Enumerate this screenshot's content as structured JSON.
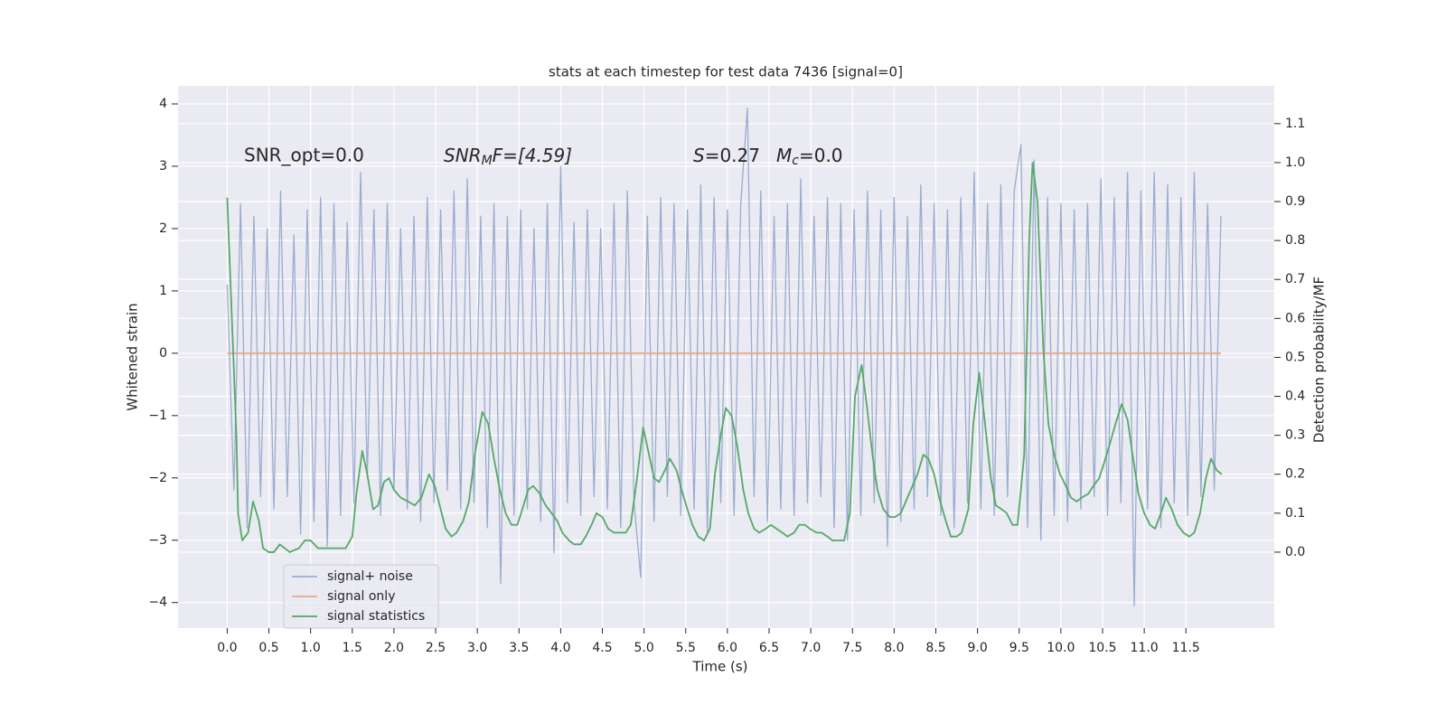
{
  "chart_data": {
    "type": "line",
    "title": "stats at each timestep for test data 7436 [signal=0]",
    "xlabel": "Time (s)",
    "ylabel": "Whitened strain",
    "y2label": "Detection probability/MF",
    "annotations": [
      {
        "text": "SNR_opt=0.0"
      },
      {
        "base": "SNR",
        "sub": "M",
        "rest": "F=[4.59]"
      },
      {
        "base": "S",
        "rest": "=0.27"
      },
      {
        "base": "M",
        "sub": "c",
        "rest": "=0.0"
      }
    ],
    "xlim": [
      -0.59,
      12.56
    ],
    "ylim": [
      -4.41,
      4.29
    ],
    "y2lim": [
      -0.195,
      1.197
    ],
    "xticks": [
      {
        "value": 0,
        "label": "0.0"
      },
      0.5,
      {
        "value": 1,
        "label": "1.0"
      },
      1.5,
      {
        "value": 2,
        "label": "2.0"
      },
      2.5,
      {
        "value": 3,
        "label": "3.0"
      },
      3.5,
      {
        "value": 4,
        "label": "4.0"
      },
      4.5,
      {
        "value": 5,
        "label": "5.0"
      },
      5.5,
      {
        "value": 6,
        "label": "6.0"
      },
      6.5,
      {
        "value": 7,
        "label": "7.0"
      },
      7.5,
      {
        "value": 8,
        "label": "8.0"
      },
      8.5,
      {
        "value": 9,
        "label": "9.0"
      },
      9.5,
      {
        "value": 10,
        "label": "10.0"
      },
      10.5,
      {
        "value": 11,
        "label": "11.0"
      },
      11.5
    ],
    "yticks": [
      {
        "value": -4,
        "label": "−4"
      },
      {
        "value": -3,
        "label": "−3"
      },
      {
        "value": -2,
        "label": "−2"
      },
      {
        "value": -1,
        "label": "−1"
      },
      0,
      1,
      2,
      3,
      4
    ],
    "y2ticks": [
      {
        "value": 0,
        "label": "0.0"
      },
      0.1,
      0.2,
      0.3,
      0.4,
      0.5,
      0.6,
      0.7,
      0.8,
      0.9,
      {
        "value": 1,
        "label": "1.0"
      },
      1.1
    ],
    "grid": true,
    "legend": "lower left",
    "series": [
      {
        "name": "signal+ noise",
        "color": "#9aaccf",
        "x": [
          0,
          0.08,
          0.16,
          0.24,
          0.32,
          0.4,
          0.48,
          0.56,
          0.64,
          0.72,
          0.8,
          0.88,
          0.96,
          1.04,
          1.12,
          1.2,
          1.28,
          1.36,
          1.44,
          1.52,
          1.6,
          1.68,
          1.76,
          1.84,
          1.92,
          2,
          2.08,
          2.16,
          2.24,
          2.32,
          2.4,
          2.48,
          2.56,
          2.64,
          2.72,
          2.8,
          2.88,
          2.96,
          3.04,
          3.12,
          3.2,
          3.28,
          3.36,
          3.44,
          3.52,
          3.6,
          3.68,
          3.76,
          3.84,
          3.92,
          4,
          4.08,
          4.16,
          4.24,
          4.32,
          4.4,
          4.48,
          4.56,
          4.64,
          4.72,
          4.8,
          4.88,
          4.96,
          5.04,
          5.12,
          5.2,
          5.28,
          5.36,
          5.44,
          5.52,
          5.6,
          5.68,
          5.76,
          5.84,
          5.92,
          6,
          6.08,
          6.16,
          6.24,
          6.32,
          6.4,
          6.48,
          6.56,
          6.64,
          6.72,
          6.8,
          6.88,
          6.96,
          7.04,
          7.12,
          7.2,
          7.28,
          7.36,
          7.44,
          7.52,
          7.6,
          7.68,
          7.76,
          7.84,
          7.92,
          8,
          8.08,
          8.16,
          8.24,
          8.32,
          8.4,
          8.48,
          8.56,
          8.64,
          8.72,
          8.8,
          8.88,
          8.96,
          9.04,
          9.12,
          9.2,
          9.28,
          9.36,
          9.44,
          9.52,
          9.6,
          9.68,
          9.76,
          9.84,
          9.92,
          10,
          10.08,
          10.16,
          10.24,
          10.32,
          10.4,
          10.48,
          10.56,
          10.64,
          10.72,
          10.8,
          10.88,
          10.96,
          11.04,
          11.12,
          11.2,
          11.28,
          11.36,
          11.44,
          11.52,
          11.6,
          11.68,
          11.76,
          11.84,
          11.92
        ],
        "values": [
          1.1,
          -2.2,
          2.4,
          -2.8,
          2.2,
          -2.3,
          2.0,
          -2.5,
          2.6,
          -2.3,
          1.9,
          -2.9,
          2.3,
          -2.7,
          2.5,
          -3.1,
          2.4,
          -2.6,
          2.1,
          -2.4,
          2.9,
          -2.0,
          2.3,
          -2.6,
          2.4,
          -2.2,
          2.0,
          -2.5,
          2.2,
          -2.7,
          2.5,
          -2.4,
          2.3,
          -2.2,
          2.6,
          -2.5,
          2.8,
          -2.4,
          2.2,
          -2.8,
          2.4,
          -3.7,
          2.2,
          -2.6,
          2.3,
          -2.5,
          2.0,
          -2.7,
          2.4,
          -3.2,
          3.0,
          -2.4,
          2.1,
          -2.6,
          2.3,
          -2.3,
          2.0,
          -2.5,
          2.4,
          -2.8,
          2.6,
          -2.4,
          -3.6,
          2.2,
          -2.7,
          2.5,
          -2.3,
          2.4,
          -2.6,
          2.3,
          -2.5,
          2.7,
          -2.9,
          2.5,
          -2.4,
          2.3,
          -2.6,
          2.4,
          3.93,
          -2.3,
          2.6,
          -2.7,
          2.2,
          -2.5,
          2.4,
          -2.6,
          2.8,
          -2.4,
          2.2,
          -2.3,
          2.5,
          -2.8,
          2.4,
          -3.0,
          2.3,
          -2.6,
          2.6,
          -2.4,
          2.3,
          -3.1,
          2.5,
          -2.7,
          2.2,
          -2.5,
          2.7,
          -2.3,
          2.4,
          -2.6,
          2.3,
          -2.8,
          2.5,
          -2.4,
          2.9,
          -2.5,
          2.4,
          -2.6,
          2.7,
          -2.3,
          2.6,
          3.35,
          -2.8,
          3.1,
          -3.0,
          2.5,
          -2.6,
          2.4,
          -2.7,
          2.3,
          -2.5,
          2.4,
          -2.3,
          2.8,
          -2.6,
          2.5,
          -2.4,
          2.9,
          -4.05,
          2.6,
          -2.5,
          2.9,
          -2.8,
          2.7,
          -2.4,
          2.5,
          -2.6,
          2.9,
          -2.3,
          2.4,
          -2.2,
          2.2
        ]
      },
      {
        "name": "signal only",
        "color": "#e8a68a",
        "x": [
          0,
          11.92
        ],
        "values": [
          0,
          0
        ]
      },
      {
        "name": "signal statistics",
        "color": "#55a868",
        "axis": "y2",
        "x": [
          0,
          0.11,
          0.13,
          0.18,
          0.25,
          0.31,
          0.38,
          0.43,
          0.5,
          0.56,
          0.63,
          0.75,
          0.86,
          0.93,
          1,
          1.09,
          1.21,
          1.34,
          1.42,
          1.5,
          1.55,
          1.62,
          1.68,
          1.75,
          1.81,
          1.88,
          1.94,
          2,
          2.08,
          2.17,
          2.25,
          2.33,
          2.42,
          2.49,
          2.56,
          2.62,
          2.69,
          2.75,
          2.83,
          2.9,
          2.97,
          3.06,
          3.13,
          3.2,
          3.27,
          3.34,
          3.41,
          3.48,
          3.54,
          3.61,
          3.67,
          3.75,
          3.82,
          3.89,
          3.96,
          4.02,
          4.1,
          4.16,
          4.24,
          4.3,
          4.37,
          4.43,
          4.5,
          4.57,
          4.64,
          4.7,
          4.78,
          4.84,
          4.91,
          4.99,
          5.05,
          5.12,
          5.18,
          5.25,
          5.31,
          5.39,
          5.45,
          5.52,
          5.58,
          5.65,
          5.72,
          5.79,
          5.85,
          5.92,
          5.98,
          6.05,
          6.12,
          6.19,
          6.25,
          6.32,
          6.38,
          6.46,
          6.52,
          6.59,
          6.66,
          6.72,
          6.8,
          6.86,
          6.93,
          6.99,
          7.07,
          7.13,
          7.2,
          7.26,
          7.34,
          7.4,
          7.47,
          7.53,
          7.61,
          7.67,
          7.74,
          7.8,
          7.87,
          7.95,
          8.01,
          8.08,
          8.14,
          8.2,
          8.28,
          8.35,
          8.41,
          8.48,
          8.54,
          8.62,
          8.68,
          8.75,
          8.81,
          8.89,
          8.95,
          9.02,
          9.08,
          9.16,
          9.22,
          9.29,
          9.35,
          9.42,
          9.48,
          9.56,
          9.62,
          9.66,
          9.72,
          9.79,
          9.85,
          9.92,
          9.99,
          10.06,
          10.12,
          10.19,
          10.25,
          10.33,
          10.39,
          10.46,
          10.52,
          10.59,
          10.67,
          10.73,
          10.8,
          10.86,
          10.93,
          11,
          11.07,
          11.13,
          11.2,
          11.26,
          11.33,
          11.4,
          11.47,
          11.54,
          11.6,
          11.67,
          11.74,
          11.8,
          11.87,
          11.93
        ],
        "values": [
          0.91,
          0.3,
          0.1,
          0.03,
          0.05,
          0.13,
          0.08,
          0.01,
          0,
          0,
          0.02,
          0,
          0.01,
          0.03,
          0.03,
          0.01,
          0.01,
          0.01,
          0.01,
          0.04,
          0.15,
          0.26,
          0.2,
          0.11,
          0.12,
          0.18,
          0.19,
          0.16,
          0.14,
          0.13,
          0.12,
          0.14,
          0.2,
          0.17,
          0.11,
          0.06,
          0.04,
          0.05,
          0.08,
          0.13,
          0.25,
          0.36,
          0.33,
          0.24,
          0.16,
          0.1,
          0.07,
          0.07,
          0.11,
          0.16,
          0.17,
          0.15,
          0.12,
          0.1,
          0.08,
          0.05,
          0.03,
          0.02,
          0.02,
          0.04,
          0.07,
          0.1,
          0.09,
          0.06,
          0.05,
          0.05,
          0.05,
          0.07,
          0.18,
          0.32,
          0.26,
          0.19,
          0.18,
          0.21,
          0.24,
          0.21,
          0.16,
          0.11,
          0.07,
          0.04,
          0.03,
          0.06,
          0.2,
          0.3,
          0.37,
          0.35,
          0.27,
          0.16,
          0.1,
          0.06,
          0.05,
          0.06,
          0.07,
          0.06,
          0.05,
          0.04,
          0.05,
          0.07,
          0.07,
          0.06,
          0.05,
          0.05,
          0.04,
          0.03,
          0.03,
          0.03,
          0.1,
          0.4,
          0.48,
          0.38,
          0.25,
          0.16,
          0.11,
          0.09,
          0.09,
          0.1,
          0.13,
          0.16,
          0.2,
          0.25,
          0.24,
          0.2,
          0.14,
          0.08,
          0.04,
          0.04,
          0.05,
          0.11,
          0.33,
          0.46,
          0.35,
          0.19,
          0.12,
          0.11,
          0.1,
          0.07,
          0.07,
          0.25,
          0.8,
          1.0,
          0.9,
          0.52,
          0.33,
          0.25,
          0.2,
          0.17,
          0.14,
          0.13,
          0.14,
          0.15,
          0.17,
          0.19,
          0.23,
          0.28,
          0.34,
          0.38,
          0.34,
          0.25,
          0.15,
          0.1,
          0.07,
          0.06,
          0.1,
          0.14,
          0.11,
          0.07,
          0.05,
          0.04,
          0.05,
          0.1,
          0.19,
          0.24,
          0.21,
          0.2
        ]
      }
    ]
  }
}
